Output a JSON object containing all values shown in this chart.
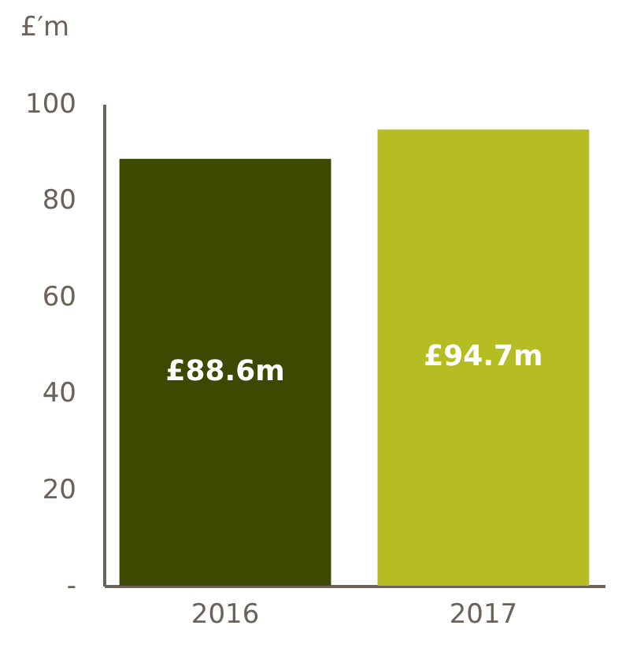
{
  "chart_data": {
    "type": "bar",
    "ylabel": "£′m",
    "categories": [
      "2016",
      "2017"
    ],
    "values": [
      88.6,
      94.7
    ],
    "colors": [
      "#3b4a00",
      "#b5bd22"
    ],
    "value_labels": [
      "£88.6m",
      "£94.7m"
    ],
    "ylim": [
      0,
      100
    ],
    "yticks": [
      {
        "value": 0,
        "label": "-"
      },
      20,
      40,
      60,
      80,
      100
    ],
    "grid": false
  }
}
